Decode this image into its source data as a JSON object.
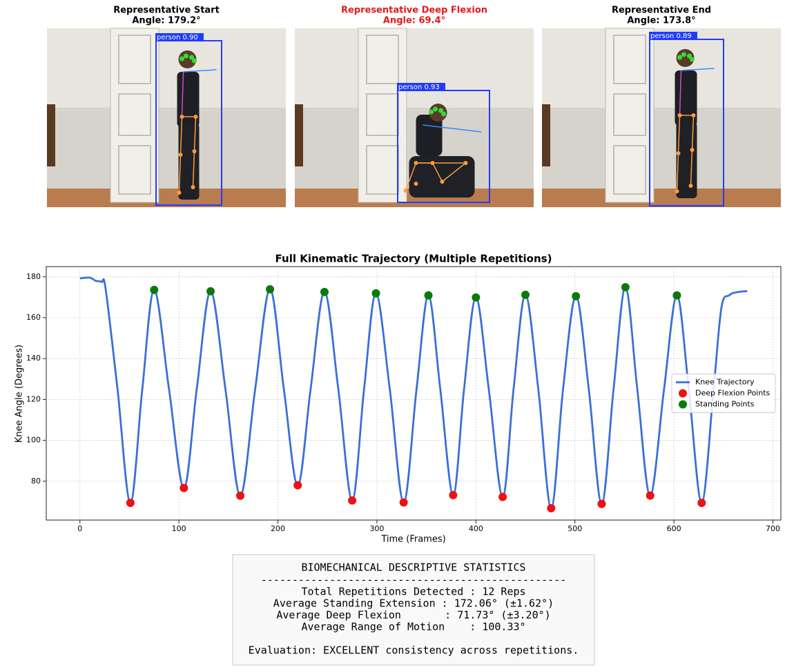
{
  "panels": [
    {
      "title": "Representative Start",
      "subtitle": "Angle: 179.2°",
      "detection": "person 0.90",
      "title_color": "#000000"
    },
    {
      "title": "Representative Deep Flexion",
      "subtitle": "Angle: 69.4°",
      "detection": "person 0.93",
      "title_color": "#e31a1c"
    },
    {
      "title": "Representative End",
      "subtitle": "Angle: 173.8°",
      "detection": "person 0.89",
      "title_color": "#000000"
    }
  ],
  "chart_data": {
    "type": "line",
    "title": "Full Kinematic Trajectory (Multiple Repetitions)",
    "x_label": "Time (Frames)",
    "y_label": "Knee Angle (Degrees)",
    "xlim": [
      -34,
      708
    ],
    "ylim": [
      61,
      185
    ],
    "xticks": [
      0,
      100,
      200,
      300,
      400,
      500,
      600,
      700
    ],
    "yticks": [
      80,
      100,
      120,
      140,
      160,
      180
    ],
    "grid": true,
    "legend": "center right",
    "series": [
      {
        "name": "Knee Trajectory",
        "type": "line",
        "color": "#3a6fd8",
        "x": [
          0,
          10,
          16,
          22,
          26,
          38,
          51,
          63,
          75,
          90,
          105,
          118,
          132,
          147,
          162,
          177,
          192,
          206,
          220,
          233,
          247,
          261,
          275,
          287,
          299,
          313,
          327,
          340,
          352,
          364,
          377,
          388,
          400,
          413,
          427,
          438,
          450,
          463,
          476,
          488,
          501,
          514,
          527,
          539,
          551,
          563,
          576,
          590,
          603,
          615,
          628,
          640,
          648,
          656,
          664,
          674
        ],
        "values": [
          179.2,
          179.6,
          178,
          177.5,
          174,
          125,
          69.4,
          125,
          173.6,
          125,
          76.7,
          125,
          172.9,
          125,
          72.9,
          125,
          173.9,
          125,
          78.0,
          125,
          172.6,
          125,
          70.6,
          125,
          171.9,
          125,
          69.6,
          125,
          170.9,
          125,
          73.2,
          125,
          169.9,
          125,
          72.3,
          125,
          171.2,
          125,
          66.8,
          125,
          170.5,
          125,
          68.9,
          125,
          174.9,
          125,
          73.0,
          125,
          170.9,
          125,
          69.4,
          125,
          165,
          171,
          172.5,
          173
        ]
      },
      {
        "name": "Deep Flexion Points",
        "type": "scatter",
        "color": "#ee1111",
        "x": [
          51,
          105,
          162,
          220,
          275,
          327,
          377,
          427,
          476,
          527,
          576,
          628
        ],
        "values": [
          69.4,
          76.7,
          72.9,
          78.0,
          70.6,
          69.6,
          73.2,
          72.3,
          66.8,
          68.9,
          73.0,
          69.4
        ]
      },
      {
        "name": "Standing Points",
        "type": "scatter",
        "color": "#0a7a0a",
        "x": [
          75,
          132,
          192,
          247,
          299,
          352,
          400,
          450,
          501,
          551,
          603
        ],
        "values": [
          173.6,
          172.9,
          173.9,
          172.6,
          171.9,
          170.9,
          169.9,
          171.2,
          170.5,
          174.9,
          170.9
        ]
      }
    ]
  },
  "stats": {
    "title": "BIOMECHANICAL DESCRIPTIVE STATISTICS",
    "separator": "-------------------------------------------------",
    "lines": [
      "Total Repetitions Detected : 12 Reps",
      "Average Standing Extension : 172.06° (±1.62°)",
      "Average Deep Flexion       : 71.73° (±3.20°)",
      "Average Range of Motion    : 100.33°"
    ],
    "evaluation": "Evaluation: EXCELLENT consistency across repetitions."
  }
}
